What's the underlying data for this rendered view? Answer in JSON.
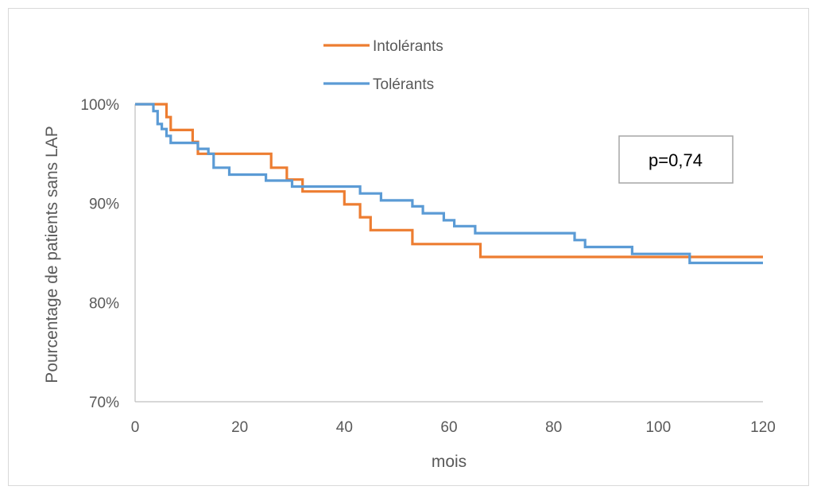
{
  "chart_data": {
    "type": "line",
    "xlabel": "mois",
    "ylabel": "Pourcentage de patients sans LAP",
    "xlim": [
      0,
      120
    ],
    "ylim": [
      70,
      100
    ],
    "x_ticks": [
      "0",
      "20",
      "40",
      "60",
      "80",
      "100",
      "120"
    ],
    "y_ticks": [
      "70%",
      "80%",
      "90%",
      "100%"
    ],
    "grid": false,
    "legend_position": "top-center",
    "annotation": "p=0,74",
    "series": [
      {
        "name": "Intolérants",
        "color": "#ED7D31",
        "step": true,
        "x": [
          0,
          6,
          6.8,
          11,
          12,
          26,
          29,
          32,
          40,
          43,
          45,
          53,
          66,
          120
        ],
        "y": [
          100,
          98.7,
          97.4,
          96.2,
          95.0,
          93.6,
          92.4,
          91.2,
          89.9,
          88.6,
          87.3,
          85.9,
          84.6,
          84.6
        ]
      },
      {
        "name": "Tolérants",
        "color": "#5B9BD5",
        "step": true,
        "x": [
          0,
          3.5,
          4.3,
          5.1,
          6,
          6.8,
          12,
          14,
          15,
          18,
          25,
          30,
          32,
          43,
          47,
          53,
          55,
          59,
          61,
          65,
          84,
          86,
          95,
          106,
          120
        ],
        "y": [
          100,
          99.3,
          98.0,
          97.5,
          96.8,
          96.1,
          95.5,
          95.0,
          93.6,
          92.9,
          92.3,
          91.7,
          91.7,
          91.0,
          90.3,
          89.7,
          89.0,
          88.3,
          87.7,
          87.0,
          86.3,
          85.6,
          84.9,
          84.0,
          84.0
        ]
      }
    ]
  }
}
